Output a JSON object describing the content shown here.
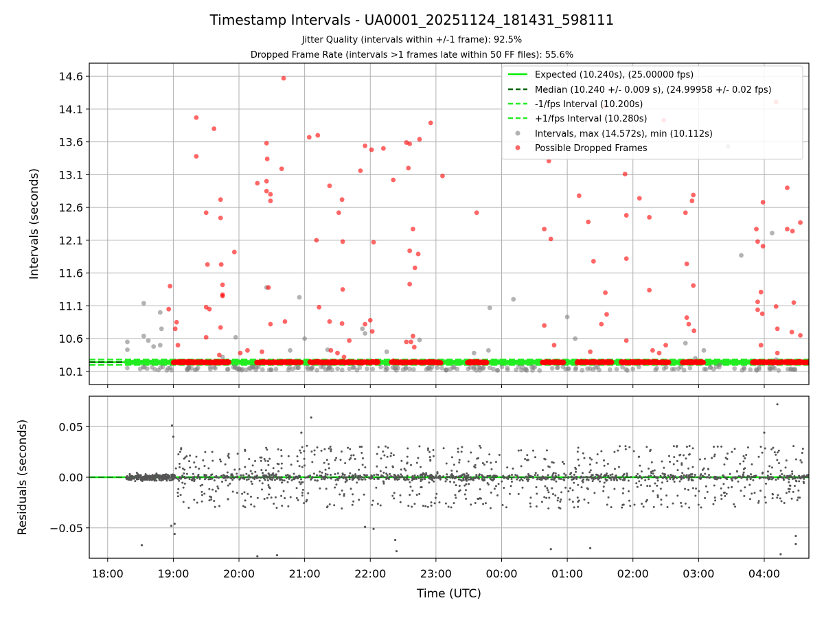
{
  "figure": {
    "title": "Timestamp Intervals - UA0001_20251124_181431_598111",
    "subtitle_1": "Jitter Quality (intervals within +/-1 frame): 92.5%",
    "subtitle_2": "Dropped Frame Rate (intervals >1 frames late within 50 FF files): 55.6%"
  },
  "colors": {
    "expected": "#00ee00",
    "median": "#006400",
    "bounds": "#22ee22",
    "intervals": "#808080",
    "dropped": "#ff0000",
    "grid": "#b0b0b0",
    "residual_points": "#555555"
  },
  "chart_data": [
    {
      "type": "scatter",
      "ylabel": "Intervals (seconds)",
      "xlabel": "",
      "grid": true,
      "legend_position": "top-right",
      "x_unit": "hours since 18:00 UTC",
      "xlim": [
        -0.28,
        10.68
      ],
      "ylim": [
        9.9,
        14.8
      ],
      "yticks": [
        10.1,
        10.6,
        11.1,
        11.6,
        12.1,
        12.6,
        13.1,
        13.6,
        14.1,
        14.6
      ],
      "ytick_labels": [
        "10.1",
        "10.6",
        "11.1",
        "11.6",
        "12.1",
        "12.6",
        "13.1",
        "13.6",
        "14.1",
        "14.6"
      ],
      "expected_interval": 10.24,
      "median_interval": 10.24,
      "lower_bound": 10.2,
      "upper_bound": 10.28,
      "legend": [
        {
          "label": "Expected (10.240s), (25.00000 fps)",
          "style": "solid",
          "color_key": "expected"
        },
        {
          "label": "Median (10.240 +/- 0.009 s), (24.99958 +/- 0.02 fps)",
          "style": "dashed",
          "color_key": "median"
        },
        {
          "label": "-1/fps Interval (10.200s)",
          "style": "dashed",
          "color_key": "bounds"
        },
        {
          "label": "+1/fps Interval (10.280s)",
          "style": "dashed",
          "color_key": "bounds"
        },
        {
          "label": "Intervals, max (14.572s), min (10.112s)",
          "style": "marker",
          "color_key": "intervals"
        },
        {
          "label": "Possible Dropped Frames",
          "style": "marker",
          "color_key": "dropped"
        }
      ],
      "dropped_points": [
        [
          0.95,
          11.4
        ],
        [
          0.93,
          11.05
        ],
        [
          1.05,
          10.85
        ],
        [
          1.07,
          10.5
        ],
        [
          1.03,
          10.75
        ],
        [
          1.35,
          13.97
        ],
        [
          1.35,
          13.38
        ],
        [
          1.5,
          12.52
        ],
        [
          1.52,
          11.73
        ],
        [
          1.5,
          11.08
        ],
        [
          1.5,
          10.62
        ],
        [
          1.55,
          11.05
        ],
        [
          1.62,
          13.8
        ],
        [
          1.72,
          12.72
        ],
        [
          1.72,
          12.44
        ],
        [
          1.73,
          11.73
        ],
        [
          1.75,
          11.42
        ],
        [
          1.75,
          11.25
        ],
        [
          1.75,
          11.27
        ],
        [
          1.72,
          10.77
        ],
        [
          1.7,
          10.35
        ],
        [
          1.93,
          11.92
        ],
        [
          2.02,
          10.38
        ],
        [
          2.13,
          10.42
        ],
        [
          2.28,
          12.97
        ],
        [
          2.42,
          13.58
        ],
        [
          2.43,
          13.34
        ],
        [
          2.42,
          13.0
        ],
        [
          2.42,
          12.85
        ],
        [
          2.48,
          12.8
        ],
        [
          2.48,
          12.7
        ],
        [
          2.45,
          11.38
        ],
        [
          2.48,
          10.82
        ],
        [
          2.35,
          10.4
        ],
        [
          2.65,
          13.19
        ],
        [
          2.7,
          10.86
        ],
        [
          2.68,
          14.57
        ],
        [
          3.07,
          13.67
        ],
        [
          3.2,
          13.7
        ],
        [
          3.18,
          12.1
        ],
        [
          3.22,
          11.08
        ],
        [
          3.38,
          12.93
        ],
        [
          3.38,
          10.86
        ],
        [
          3.4,
          10.42
        ],
        [
          3.52,
          12.52
        ],
        [
          3.57,
          12.72
        ],
        [
          3.58,
          12.08
        ],
        [
          3.58,
          11.35
        ],
        [
          3.57,
          10.83
        ],
        [
          3.68,
          10.57
        ],
        [
          3.6,
          10.32
        ],
        [
          3.5,
          10.38
        ],
        [
          3.85,
          13.16
        ],
        [
          3.92,
          13.54
        ],
        [
          4.02,
          13.48
        ],
        [
          4.05,
          12.07
        ],
        [
          4.0,
          10.88
        ],
        [
          4.03,
          10.71
        ],
        [
          3.92,
          10.82
        ],
        [
          4.2,
          13.5
        ],
        [
          4.35,
          13.02
        ],
        [
          4.55,
          13.59
        ],
        [
          4.6,
          13.57
        ],
        [
          4.58,
          13.2
        ],
        [
          4.6,
          11.94
        ],
        [
          4.65,
          12.27
        ],
        [
          4.68,
          11.68
        ],
        [
          4.6,
          11.43
        ],
        [
          4.73,
          11.89
        ],
        [
          4.65,
          10.64
        ],
        [
          4.62,
          10.55
        ],
        [
          4.67,
          10.47
        ],
        [
          4.55,
          10.55
        ],
        [
          4.75,
          13.64
        ],
        [
          4.92,
          13.89
        ],
        [
          5.1,
          13.08
        ],
        [
          5.62,
          12.52
        ],
        [
          6.65,
          12.27
        ],
        [
          6.65,
          10.8
        ],
        [
          6.72,
          13.31
        ],
        [
          6.75,
          12.12
        ],
        [
          6.8,
          10.5
        ],
        [
          7.18,
          12.78
        ],
        [
          7.32,
          12.38
        ],
        [
          7.4,
          11.78
        ],
        [
          7.35,
          10.4
        ],
        [
          7.52,
          10.82
        ],
        [
          7.58,
          11.3
        ],
        [
          7.6,
          10.97
        ],
        [
          7.57,
          14.14
        ],
        [
          7.88,
          13.11
        ],
        [
          7.9,
          12.48
        ],
        [
          7.9,
          11.82
        ],
        [
          7.9,
          10.57
        ],
        [
          8.1,
          12.74
        ],
        [
          8.25,
          12.45
        ],
        [
          8.25,
          11.34
        ],
        [
          8.3,
          10.42
        ],
        [
          8.47,
          13.93
        ],
        [
          8.4,
          10.38
        ],
        [
          8.5,
          10.5
        ],
        [
          8.8,
          12.52
        ],
        [
          8.82,
          11.74
        ],
        [
          8.82,
          10.92
        ],
        [
          8.85,
          10.82
        ],
        [
          8.92,
          12.79
        ],
        [
          8.9,
          12.7
        ],
        [
          8.92,
          11.41
        ],
        [
          8.93,
          10.72
        ],
        [
          9.88,
          12.27
        ],
        [
          9.9,
          12.08
        ],
        [
          9.98,
          12.01
        ],
        [
          9.95,
          11.31
        ],
        [
          9.9,
          11.16
        ],
        [
          9.9,
          11.04
        ],
        [
          9.97,
          10.98
        ],
        [
          9.95,
          10.5
        ],
        [
          9.98,
          12.68
        ],
        [
          10.18,
          14.21
        ],
        [
          10.18,
          11.09
        ],
        [
          10.2,
          10.75
        ],
        [
          10.2,
          10.38
        ],
        [
          10.35,
          12.9
        ],
        [
          10.35,
          12.27
        ],
        [
          10.43,
          12.24
        ],
        [
          10.45,
          11.15
        ],
        [
          10.42,
          10.7
        ],
        [
          10.55,
          12.37
        ],
        [
          10.55,
          10.65
        ]
      ],
      "gray_points": [
        [
          0.3,
          10.55
        ],
        [
          0.3,
          10.43
        ],
        [
          0.55,
          11.14
        ],
        [
          0.55,
          10.64
        ],
        [
          0.62,
          10.57
        ],
        [
          0.7,
          10.48
        ],
        [
          0.8,
          11.0
        ],
        [
          0.82,
          10.75
        ],
        [
          0.8,
          10.5
        ],
        [
          1.75,
          10.32
        ],
        [
          1.95,
          10.62
        ],
        [
          2.42,
          11.38
        ],
        [
          2.78,
          10.42
        ],
        [
          2.92,
          11.23
        ],
        [
          3.0,
          10.6
        ],
        [
          3.35,
          10.43
        ],
        [
          3.88,
          10.75
        ],
        [
          3.92,
          10.68
        ],
        [
          4.25,
          10.4
        ],
        [
          4.75,
          10.58
        ],
        [
          5.58,
          10.38
        ],
        [
          5.8,
          10.42
        ],
        [
          5.82,
          11.07
        ],
        [
          6.18,
          11.2
        ],
        [
          7.0,
          10.93
        ],
        [
          7.12,
          10.6
        ],
        [
          8.8,
          10.53
        ],
        [
          8.95,
          10.3
        ],
        [
          9.08,
          10.42
        ],
        [
          9.32,
          10.2
        ],
        [
          9.45,
          13.53
        ],
        [
          9.65,
          11.87
        ],
        [
          10.12,
          12.21
        ],
        [
          10.18,
          10.28
        ],
        [
          10.4,
          10.25
        ]
      ],
      "red_bands": [
        [
          1.0,
          1.85
        ],
        [
          2.27,
          2.95
        ],
        [
          3.08,
          4.12
        ],
        [
          4.32,
          5.08
        ],
        [
          5.48,
          5.78
        ],
        [
          6.62,
          6.95
        ],
        [
          7.15,
          7.68
        ],
        [
          7.82,
          8.55
        ],
        [
          8.75,
          9.08
        ],
        [
          9.82,
          10.68
        ]
      ]
    },
    {
      "type": "scatter",
      "ylabel": "Residuals (seconds)",
      "xlabel": "Time (UTC)",
      "grid": true,
      "xlim": [
        -0.28,
        10.68
      ],
      "ylim": [
        -0.08,
        0.08
      ],
      "yticks": [
        -0.05,
        0.0,
        0.05
      ],
      "ytick_labels": [
        "−0.05",
        "0.00",
        "0.05"
      ],
      "xticks": [
        0,
        1,
        2,
        3,
        4,
        5,
        6,
        7,
        8,
        9,
        10
      ],
      "xtick_labels": [
        "18:00",
        "19:00",
        "20:00",
        "21:00",
        "22:00",
        "23:00",
        "00:00",
        "01:00",
        "02:00",
        "03:00",
        "04:00"
      ],
      "outliers": [
        [
          0.52,
          -0.067
        ],
        [
          0.98,
          0.051
        ],
        [
          1.0,
          0.04
        ],
        [
          0.97,
          -0.048
        ],
        [
          1.02,
          -0.046
        ],
        [
          1.02,
          -0.056
        ],
        [
          2.95,
          0.044
        ],
        [
          3.1,
          0.059
        ],
        [
          3.92,
          -0.049
        ],
        [
          4.05,
          -0.051
        ],
        [
          4.38,
          -0.062
        ],
        [
          4.4,
          -0.073
        ],
        [
          2.28,
          -0.078
        ],
        [
          2.58,
          -0.077
        ],
        [
          6.75,
          -0.071
        ],
        [
          7.35,
          -0.07
        ],
        [
          10.0,
          0.044
        ],
        [
          10.2,
          0.072
        ],
        [
          10.25,
          -0.076
        ],
        [
          10.48,
          -0.058
        ],
        [
          10.48,
          -0.066
        ]
      ]
    }
  ]
}
